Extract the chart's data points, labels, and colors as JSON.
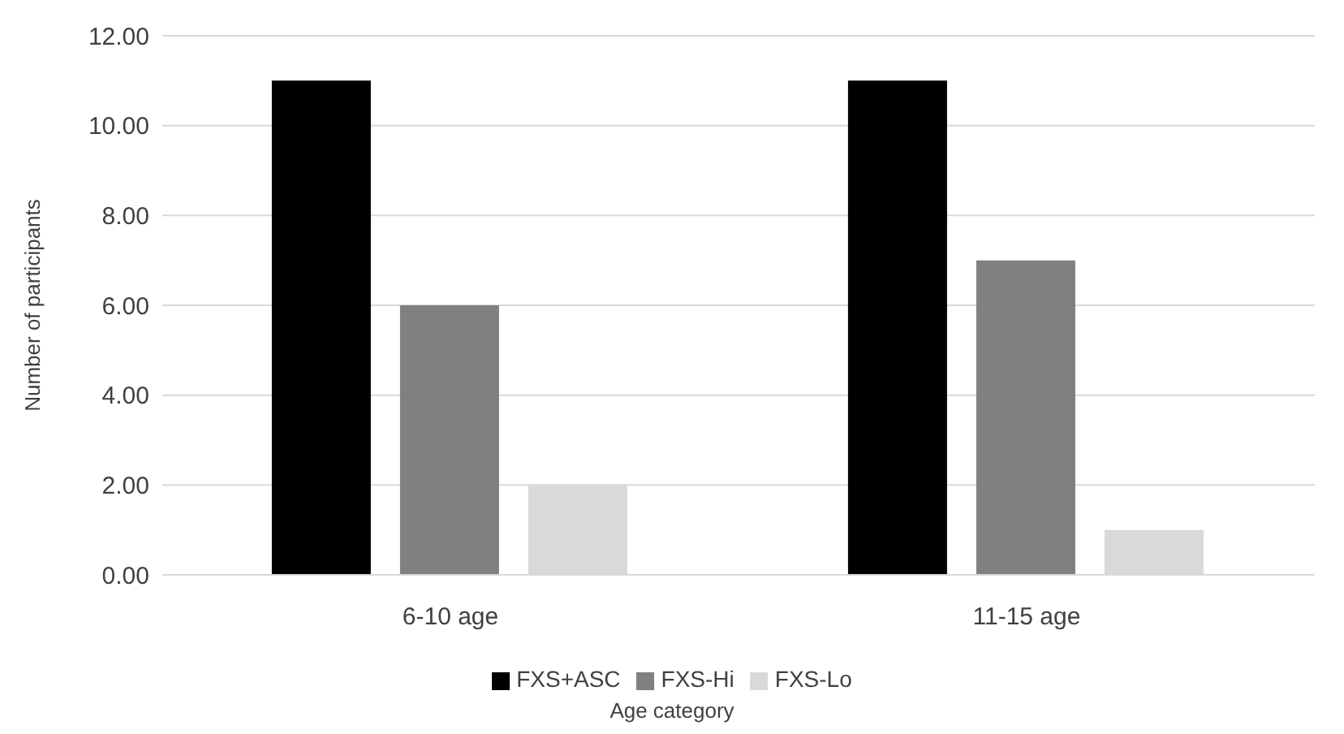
{
  "chart_data": {
    "type": "bar",
    "xlabel": "Age category",
    "ylabel": "Number of participants",
    "categories": [
      "6-10 age",
      "11-15 age"
    ],
    "series": [
      {
        "name": "FXS+ASC",
        "color": "#000000",
        "values": [
          11,
          11
        ]
      },
      {
        "name": "FXS-Hi",
        "color": "#808080",
        "values": [
          6,
          7
        ]
      },
      {
        "name": "FXS-Lo",
        "color": "#d9d9d9",
        "values": [
          2,
          1
        ]
      }
    ],
    "ylim": [
      0,
      12
    ],
    "yticks": [
      {
        "value": 0,
        "label": "0.00"
      },
      {
        "value": 2,
        "label": "2.00"
      },
      {
        "value": 4,
        "label": "4.00"
      },
      {
        "value": 6,
        "label": "6.00"
      },
      {
        "value": 8,
        "label": "8.00"
      },
      {
        "value": 10,
        "label": "10.00"
      },
      {
        "value": 12,
        "label": "12.00"
      }
    ],
    "grid": "y",
    "legend": "bottom"
  }
}
